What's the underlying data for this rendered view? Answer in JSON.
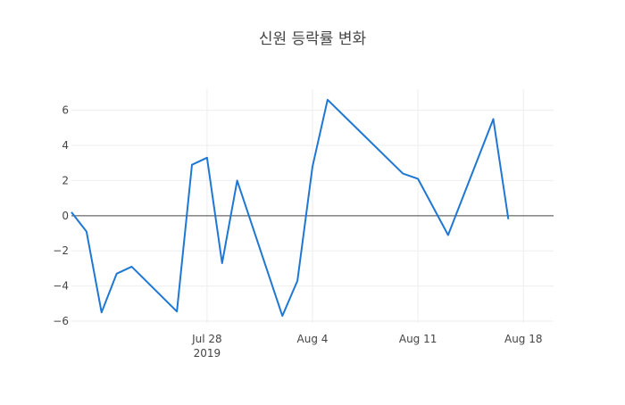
{
  "chart_data": {
    "type": "line",
    "title": "신원 등락률 변화",
    "xlabel": "",
    "ylabel": "",
    "x_axis": {
      "type": "date",
      "range": [
        "2019-07-19",
        "2019-08-20"
      ],
      "ticks": [
        {
          "date": "2019-07-28",
          "label": "Jul 28",
          "sublabel": "2019"
        },
        {
          "date": "2019-08-04",
          "label": "Aug 4",
          "sublabel": ""
        },
        {
          "date": "2019-08-11",
          "label": "Aug 11",
          "sublabel": ""
        },
        {
          "date": "2019-08-18",
          "label": "Aug 18",
          "sublabel": ""
        }
      ]
    },
    "y_axis": {
      "range": [
        -6.1,
        7.2
      ],
      "ticks": [
        {
          "value": 6,
          "label": "6"
        },
        {
          "value": 4,
          "label": "4"
        },
        {
          "value": 2,
          "label": "2"
        },
        {
          "value": 0,
          "label": "0"
        },
        {
          "value": -2,
          "label": "−2"
        },
        {
          "value": -4,
          "label": "−4"
        },
        {
          "value": -6,
          "label": "−6"
        }
      ]
    },
    "grid": true,
    "series": [
      {
        "color": "#1f77d4",
        "points": [
          {
            "x": "2019-07-19",
            "y": 0.2
          },
          {
            "x": "2019-07-20",
            "y": -0.9
          },
          {
            "x": "2019-07-21",
            "y": -5.5
          },
          {
            "x": "2019-07-22",
            "y": -3.3
          },
          {
            "x": "2019-07-23",
            "y": -2.9
          },
          {
            "x": "2019-07-26",
            "y": -5.45
          },
          {
            "x": "2019-07-27",
            "y": 2.9
          },
          {
            "x": "2019-07-28",
            "y": 3.3
          },
          {
            "x": "2019-07-29",
            "y": -2.7
          },
          {
            "x": "2019-07-30",
            "y": 2.0
          },
          {
            "x": "2019-08-02",
            "y": -5.7
          },
          {
            "x": "2019-08-03",
            "y": -3.7
          },
          {
            "x": "2019-08-04",
            "y": 2.8
          },
          {
            "x": "2019-08-05",
            "y": 6.6
          },
          {
            "x": "2019-08-10",
            "y": 2.4
          },
          {
            "x": "2019-08-11",
            "y": 2.1
          },
          {
            "x": "2019-08-13",
            "y": -1.1
          },
          {
            "x": "2019-08-16",
            "y": 5.5
          },
          {
            "x": "2019-08-17",
            "y": -0.2
          }
        ]
      }
    ]
  }
}
